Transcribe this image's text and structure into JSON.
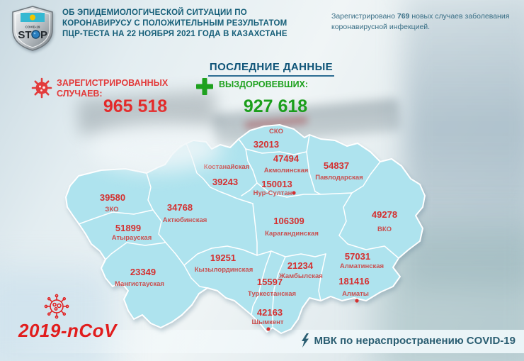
{
  "header": {
    "logo": {
      "flag": "kazakhstan-flag",
      "small_text": "COVID-19",
      "stop_text_left": "ST",
      "stop_text_right": "P"
    },
    "title_lines": [
      "ОБ ЭПИДЕМИОЛОГИЧЕСКОЙ СИТУАЦИИ ПО",
      "КОРОНАВИРУСУ С ПОЛОЖИТЕЛЬНЫМ РЕЗУЛЬТАТОМ",
      "ПЦР-ТЕСТА НА 22 НОЯБРЯ 2021 ГОДА В КАЗАХСТАНЕ"
    ],
    "daily_report": {
      "prefix": "Зарегистрировано",
      "count": "769",
      "line1_rest": "новых случаев заболевания",
      "line2": "коронавирусной инфекцией."
    }
  },
  "latest_data_label": "ПОСЛЕДНИЕ ДАННЫЕ",
  "stats": {
    "registered": {
      "label_line1": "ЗАРЕГИСТРИРОВАННЫХ",
      "label_line2": "СЛУЧАЕВ:",
      "value": "965 518"
    },
    "recovered": {
      "label": "ВЫЗДОРОВЕВШИХ:",
      "value": "927 618"
    }
  },
  "map": {
    "country": "Казахстан",
    "regions": [
      {
        "name": "СКО",
        "cases": "32013",
        "np": [
          305,
          16
        ],
        "vp": [
          291,
          36
        ]
      },
      {
        "name": "Акмолинская",
        "cases": "47494",
        "vp": [
          319,
          56
        ],
        "np": [
          319,
          71
        ]
      },
      {
        "name": "Павлодарская",
        "cases": "54837",
        "vp": [
          390,
          66
        ],
        "np": [
          394,
          81
        ]
      },
      {
        "name": "Костанайская",
        "cases": "39243",
        "np": [
          235,
          66
        ],
        "vp": [
          233,
          89
        ]
      },
      {
        "name": "Нур-Султан",
        "cases": "150013",
        "vp": [
          306,
          92
        ],
        "np": [
          300,
          103
        ],
        "dot": [
          330,
          100
        ]
      },
      {
        "name": "ЗКО",
        "cases": "39580",
        "vp": [
          74,
          111
        ],
        "np": [
          73,
          126
        ]
      },
      {
        "name": "Актюбинская",
        "cases": "34768",
        "vp": [
          169,
          125
        ],
        "np": [
          176,
          141
        ]
      },
      {
        "name": "Атырауская",
        "cases": "51899",
        "vp": [
          96,
          154
        ],
        "np": [
          101,
          166
        ]
      },
      {
        "name": "Мангистауская",
        "cases": "23349",
        "vp": [
          117,
          216
        ],
        "np": [
          112,
          231
        ]
      },
      {
        "name": "Карагандинская",
        "cases": "106309",
        "vp": [
          323,
          144
        ],
        "np": [
          327,
          160
        ]
      },
      {
        "name": "ВКО",
        "cases": "49278",
        "vp": [
          458,
          135
        ],
        "np": [
          458,
          154
        ]
      },
      {
        "name": "Кызылординская",
        "cases": "19251",
        "vp": [
          230,
          196
        ],
        "np": [
          231,
          211
        ]
      },
      {
        "name": "Жамбылская",
        "cases": "21234",
        "vp": [
          339,
          207
        ],
        "np": [
          340,
          220
        ]
      },
      {
        "name": "Алматинская",
        "cases": "57031",
        "vp": [
          420,
          194
        ],
        "np": [
          426,
          206
        ]
      },
      {
        "name": "Алматы",
        "cases": "181416",
        "vp": [
          415,
          229
        ],
        "np": [
          417,
          245
        ],
        "dot": [
          419,
          252
        ]
      },
      {
        "name": "Туркестанская",
        "cases": "15597",
        "vp": [
          296,
          230
        ],
        "np": [
          299,
          245
        ]
      },
      {
        "name": "Шымкент",
        "cases": "42163",
        "vp": [
          296,
          273
        ],
        "np": [
          293,
          285
        ],
        "dot": [
          294,
          292
        ]
      }
    ]
  },
  "footer": {
    "virus_label": "2019-nCoV",
    "mvk_label": "МВК по нераспространению COVID-19"
  },
  "colors": {
    "title_blue": "#155e78",
    "registered_red": "#e32929",
    "recovered_green": "#1b9e1b",
    "map_fill": "#aee3ee",
    "map_number_red": "#d43030",
    "map_name_red": "#c94f4f",
    "mvk_blue": "#2b5e72"
  }
}
